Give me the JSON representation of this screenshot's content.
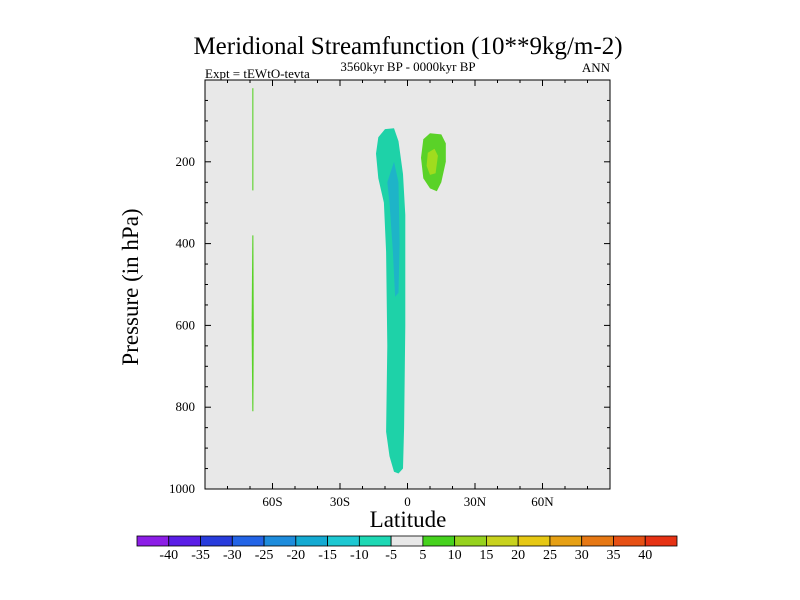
{
  "chart_data": {
    "type": "contour",
    "title": "Meridional Streamfunction (10**9kg/m-2)",
    "left_string": "Expt = tEWtO-tevta",
    "center_string": "3560kyr BP - 0000kyr BP",
    "right_string": "ANN",
    "xlabel": "Latitude",
    "ylabel": "Pressure (in hPa)",
    "xlim": [
      -90,
      90
    ],
    "ylim": [
      1000,
      0
    ],
    "x_ticks": [
      {
        "value": -60,
        "label": "60S"
      },
      {
        "value": -30,
        "label": "30S"
      },
      {
        "value": 0,
        "label": "0"
      },
      {
        "value": 30,
        "label": "30N"
      },
      {
        "value": 60,
        "label": "60N"
      }
    ],
    "y_ticks": [
      {
        "value": 200,
        "label": "200"
      },
      {
        "value": 400,
        "label": "400"
      },
      {
        "value": 600,
        "label": "600"
      },
      {
        "value": 800,
        "label": "800"
      },
      {
        "value": 1000,
        "label": "1000"
      }
    ],
    "background_color": "#e8e8e8",
    "contour_levels": [
      -40,
      -35,
      -30,
      -25,
      -20,
      -15,
      -10,
      -5,
      5,
      10,
      15,
      20,
      25,
      30,
      35,
      40
    ],
    "colorbar_colors": [
      "#8c1ee6",
      "#5a1ee6",
      "#283cdc",
      "#2364e6",
      "#1e8cdc",
      "#14aad2",
      "#1ec8d2",
      "#1ed8b4",
      "#e8e8e8",
      "#46d21e",
      "#96d21e",
      "#c8d21e",
      "#e6c814",
      "#e6a014",
      "#e67814",
      "#e65014",
      "#e63214"
    ],
    "regions": [
      {
        "name": "southern-high-latitude-positive-strip",
        "sign": "positive",
        "range_label": "5 to 10",
        "color": "#5ad228",
        "path": [
          [
            -69,
            20
          ],
          [
            -68.5,
            20
          ],
          [
            -68.5,
            270
          ],
          [
            -69,
            270
          ]
        ]
      },
      {
        "name": "southern-high-latitude-positive-strip-lower",
        "sign": "positive",
        "range_label": "5 to 10",
        "color": "#5ad228",
        "path": [
          [
            -69,
            380
          ],
          [
            -68.5,
            380
          ],
          [
            -68.3,
            600
          ],
          [
            -68.5,
            810
          ],
          [
            -69,
            810
          ],
          [
            -69.3,
            600
          ]
        ]
      },
      {
        "name": "equatorial-negative-cell",
        "sign": "negative",
        "range_label": "-10 to -5",
        "color": "#1ed2a8",
        "path": [
          [
            -10,
            120
          ],
          [
            -6,
            118
          ],
          [
            -4,
            150
          ],
          [
            -2,
            230
          ],
          [
            -1,
            330
          ],
          [
            -1,
            600
          ],
          [
            -1.5,
            850
          ],
          [
            -2,
            950
          ],
          [
            -4,
            962
          ],
          [
            -6,
            958
          ],
          [
            -8,
            920
          ],
          [
            -9.5,
            860
          ],
          [
            -9,
            650
          ],
          [
            -9.5,
            420
          ],
          [
            -10.5,
            300
          ],
          [
            -13,
            240
          ],
          [
            -14,
            180
          ],
          [
            -13,
            140
          ]
        ]
      },
      {
        "name": "equatorial-negative-core",
        "sign": "negative",
        "range_label": "-15 to -10",
        "color": "#1eb4c8",
        "path": [
          [
            -6,
            200
          ],
          [
            -4,
            250
          ],
          [
            -3.5,
            400
          ],
          [
            -4,
            520
          ],
          [
            -5.5,
            530
          ],
          [
            -6.5,
            420
          ],
          [
            -8,
            300
          ],
          [
            -9,
            250
          ]
        ]
      },
      {
        "name": "northern-tropical-positive-cell",
        "sign": "positive",
        "range_label": "5 to 10",
        "color": "#5ad228",
        "path": [
          [
            7,
            145
          ],
          [
            10,
            130
          ],
          [
            15,
            133
          ],
          [
            17,
            155
          ],
          [
            17,
            200
          ],
          [
            15,
            250
          ],
          [
            13,
            272
          ],
          [
            10,
            265
          ],
          [
            7,
            240
          ],
          [
            6,
            190
          ]
        ]
      },
      {
        "name": "northern-tropical-positive-core",
        "sign": "positive",
        "range_label": "10 to 15",
        "color": "#a0dc1e",
        "path": [
          [
            9,
            178
          ],
          [
            12,
            168
          ],
          [
            13.5,
            185
          ],
          [
            12.5,
            228
          ],
          [
            10,
            232
          ],
          [
            8.5,
            210
          ]
        ]
      }
    ]
  }
}
